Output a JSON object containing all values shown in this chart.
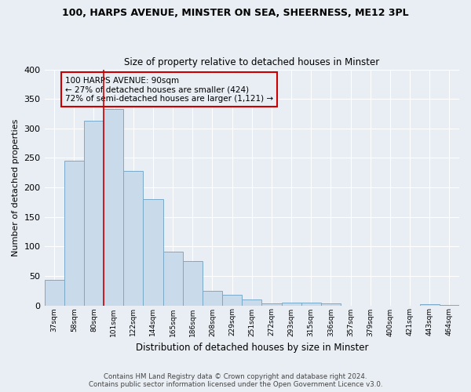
{
  "title": "100, HARPS AVENUE, MINSTER ON SEA, SHEERNESS, ME12 3PL",
  "subtitle": "Size of property relative to detached houses in Minster",
  "xlabel": "Distribution of detached houses by size in Minster",
  "ylabel": "Number of detached properties",
  "bar_color": "#c9daea",
  "bar_edge_color": "#7aaac8",
  "background_color": "#e8eef4",
  "plot_bg_color": "#e8eef4",
  "grid_color": "#ffffff",
  "categories": [
    "37sqm",
    "58sqm",
    "80sqm",
    "101sqm",
    "122sqm",
    "144sqm",
    "165sqm",
    "186sqm",
    "208sqm",
    "229sqm",
    "251sqm",
    "272sqm",
    "293sqm",
    "315sqm",
    "336sqm",
    "357sqm",
    "379sqm",
    "400sqm",
    "421sqm",
    "443sqm",
    "464sqm"
  ],
  "values": [
    43,
    245,
    313,
    333,
    228,
    180,
    91,
    75,
    25,
    18,
    10,
    4,
    5,
    5,
    3,
    0,
    0,
    0,
    0,
    2,
    1
  ],
  "vline_position": 2.5,
  "vline_color": "#cc0000",
  "annotation_line1": "100 HARPS AVENUE: 90sqm",
  "annotation_line2": "← 27% of detached houses are smaller (424)",
  "annotation_line3": "72% of semi-detached houses are larger (1,121) →",
  "annotation_box_edgecolor": "#cc0000",
  "ylim": [
    0,
    400
  ],
  "yticks": [
    0,
    50,
    100,
    150,
    200,
    250,
    300,
    350,
    400
  ],
  "footer_line1": "Contains HM Land Registry data © Crown copyright and database right 2024.",
  "footer_line2": "Contains public sector information licensed under the Open Government Licence v3.0."
}
